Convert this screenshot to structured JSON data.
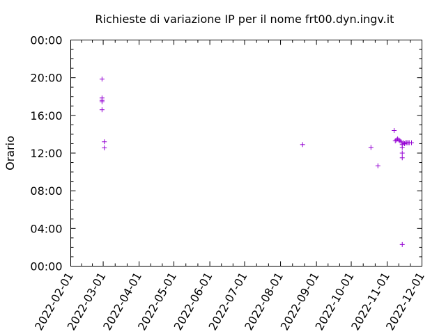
{
  "chart_data": {
    "type": "scatter",
    "title": "Richieste di variazione IP per il nome frt00.dyn.ingv.it",
    "xlabel": "",
    "ylabel": "Orario",
    "x_type": "date",
    "xlim": [
      "2022-02-01",
      "2022-12-01"
    ],
    "ylim": [
      0,
      24
    ],
    "x_ticks": [
      "2022-02-01",
      "2022-03-01",
      "2022-04-01",
      "2022-05-01",
      "2022-06-01",
      "2022-07-01",
      "2022-08-01",
      "2022-09-01",
      "2022-10-01",
      "2022-11-01",
      "2022-12-01"
    ],
    "y_ticks": [
      {
        "value": 0,
        "label": "00:00"
      },
      {
        "value": 4,
        "label": "04:00"
      },
      {
        "value": 8,
        "label": "08:00"
      },
      {
        "value": 12,
        "label": "12:00"
      },
      {
        "value": 16,
        "label": "16:00"
      },
      {
        "value": 20,
        "label": "20:00"
      },
      {
        "value": 24,
        "label": "00:00"
      }
    ],
    "marker": "+",
    "color": "#9400d3",
    "grid": false,
    "points": [
      {
        "x": "2022-02-28",
        "y": 19.85
      },
      {
        "x": "2022-02-28",
        "y": 17.85
      },
      {
        "x": "2022-02-28",
        "y": 17.6
      },
      {
        "x": "2022-02-28",
        "y": 17.45
      },
      {
        "x": "2022-02-28",
        "y": 16.6
      },
      {
        "x": "2022-03-02",
        "y": 13.2
      },
      {
        "x": "2022-03-02",
        "y": 12.55
      },
      {
        "x": "2022-08-20",
        "y": 12.9
      },
      {
        "x": "2022-10-18",
        "y": 12.6
      },
      {
        "x": "2022-10-24",
        "y": 10.65
      },
      {
        "x": "2022-11-07",
        "y": 14.4
      },
      {
        "x": "2022-11-08",
        "y": 13.3
      },
      {
        "x": "2022-11-09",
        "y": 13.4
      },
      {
        "x": "2022-11-10",
        "y": 13.5
      },
      {
        "x": "2022-11-11",
        "y": 13.4
      },
      {
        "x": "2022-11-12",
        "y": 13.3
      },
      {
        "x": "2022-11-13",
        "y": 13.2
      },
      {
        "x": "2022-11-14",
        "y": 12.9
      },
      {
        "x": "2022-11-14",
        "y": 12.6
      },
      {
        "x": "2022-11-14",
        "y": 12.0
      },
      {
        "x": "2022-11-14",
        "y": 11.5
      },
      {
        "x": "2022-11-14",
        "y": 2.3
      },
      {
        "x": "2022-11-15",
        "y": 13.1
      },
      {
        "x": "2022-11-16",
        "y": 13.0
      },
      {
        "x": "2022-11-17",
        "y": 13.1
      },
      {
        "x": "2022-11-18",
        "y": 13.1
      },
      {
        "x": "2022-11-19",
        "y": 13.1
      },
      {
        "x": "2022-11-20",
        "y": 13.1
      },
      {
        "x": "2022-11-22",
        "y": 13.1
      }
    ]
  }
}
